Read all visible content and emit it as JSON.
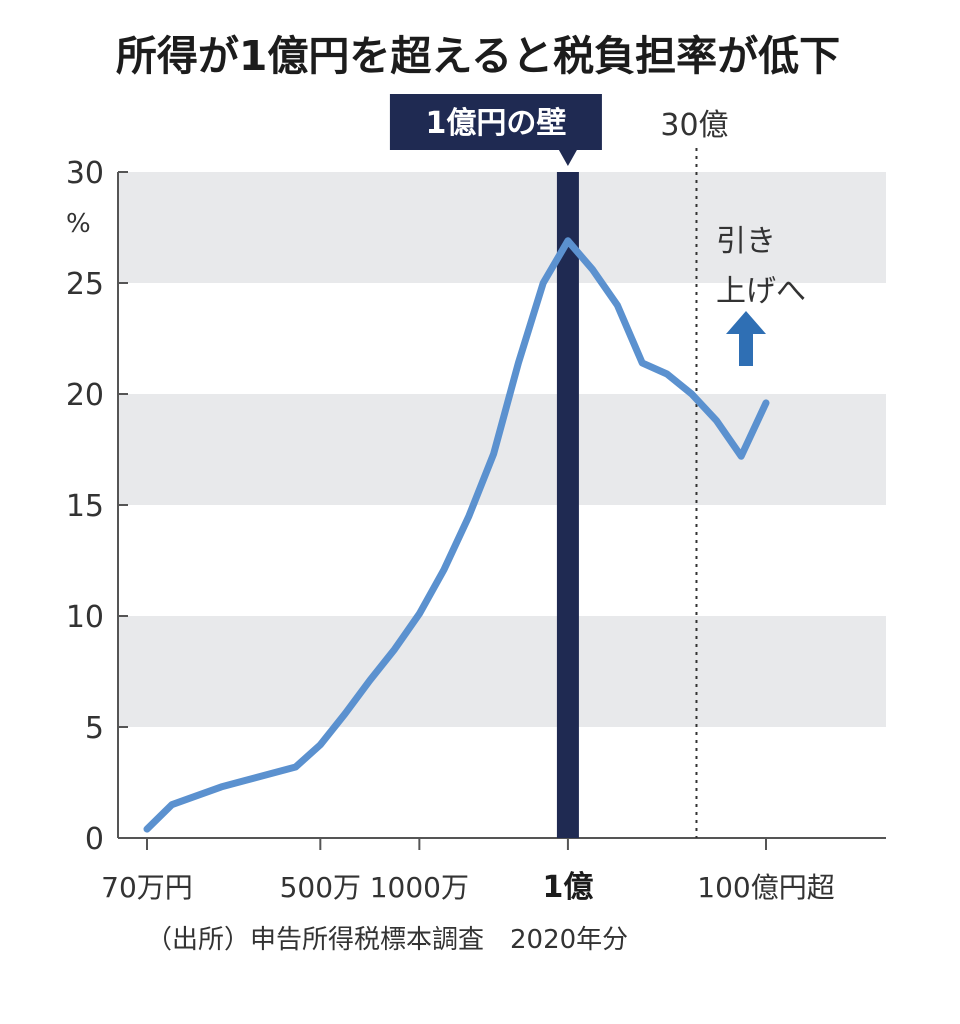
{
  "title": "所得が1億円を超えると税負担率が低下",
  "source_note": "（出所）申告所得税標本調査　2020年分",
  "wall_label": "1億円の壁",
  "threshold_label": "30億",
  "annotation": [
    "引き",
    "上げへ"
  ],
  "y_unit": "%",
  "colors": {
    "line": "#5b91cf",
    "wall": "#1f2a52",
    "band": "#e8e9eb",
    "arrow": "#2f6fb4"
  },
  "chart_data": {
    "type": "line",
    "title": "所得が1億円を超えると税負担率が低下",
    "ylim": [
      0,
      30
    ],
    "y_ticks": [
      0,
      5,
      10,
      15,
      20,
      25,
      30
    ],
    "grid": "alternating horizontal bands",
    "x_tick_labels": [
      {
        "label": "70万円",
        "index": 0
      },
      {
        "label": "500万",
        "index": 7
      },
      {
        "label": "1000万",
        "index": 11
      },
      {
        "label": "1億",
        "index": 17
      },
      {
        "label": "100億円超",
        "index": 25
      }
    ],
    "wall_index": 17,
    "threshold_index": 23,
    "series": [
      {
        "values": [
          0.4,
          1.5,
          1.9,
          2.3,
          2.6,
          2.9,
          3.2,
          4.2,
          5.6,
          7.1,
          8.5,
          10.1,
          12.1,
          14.5,
          17.3,
          21.4,
          25.0,
          26.9,
          25.6,
          24.0,
          21.4,
          20.9,
          20.0,
          18.8,
          17.2,
          19.6
        ]
      }
    ]
  }
}
